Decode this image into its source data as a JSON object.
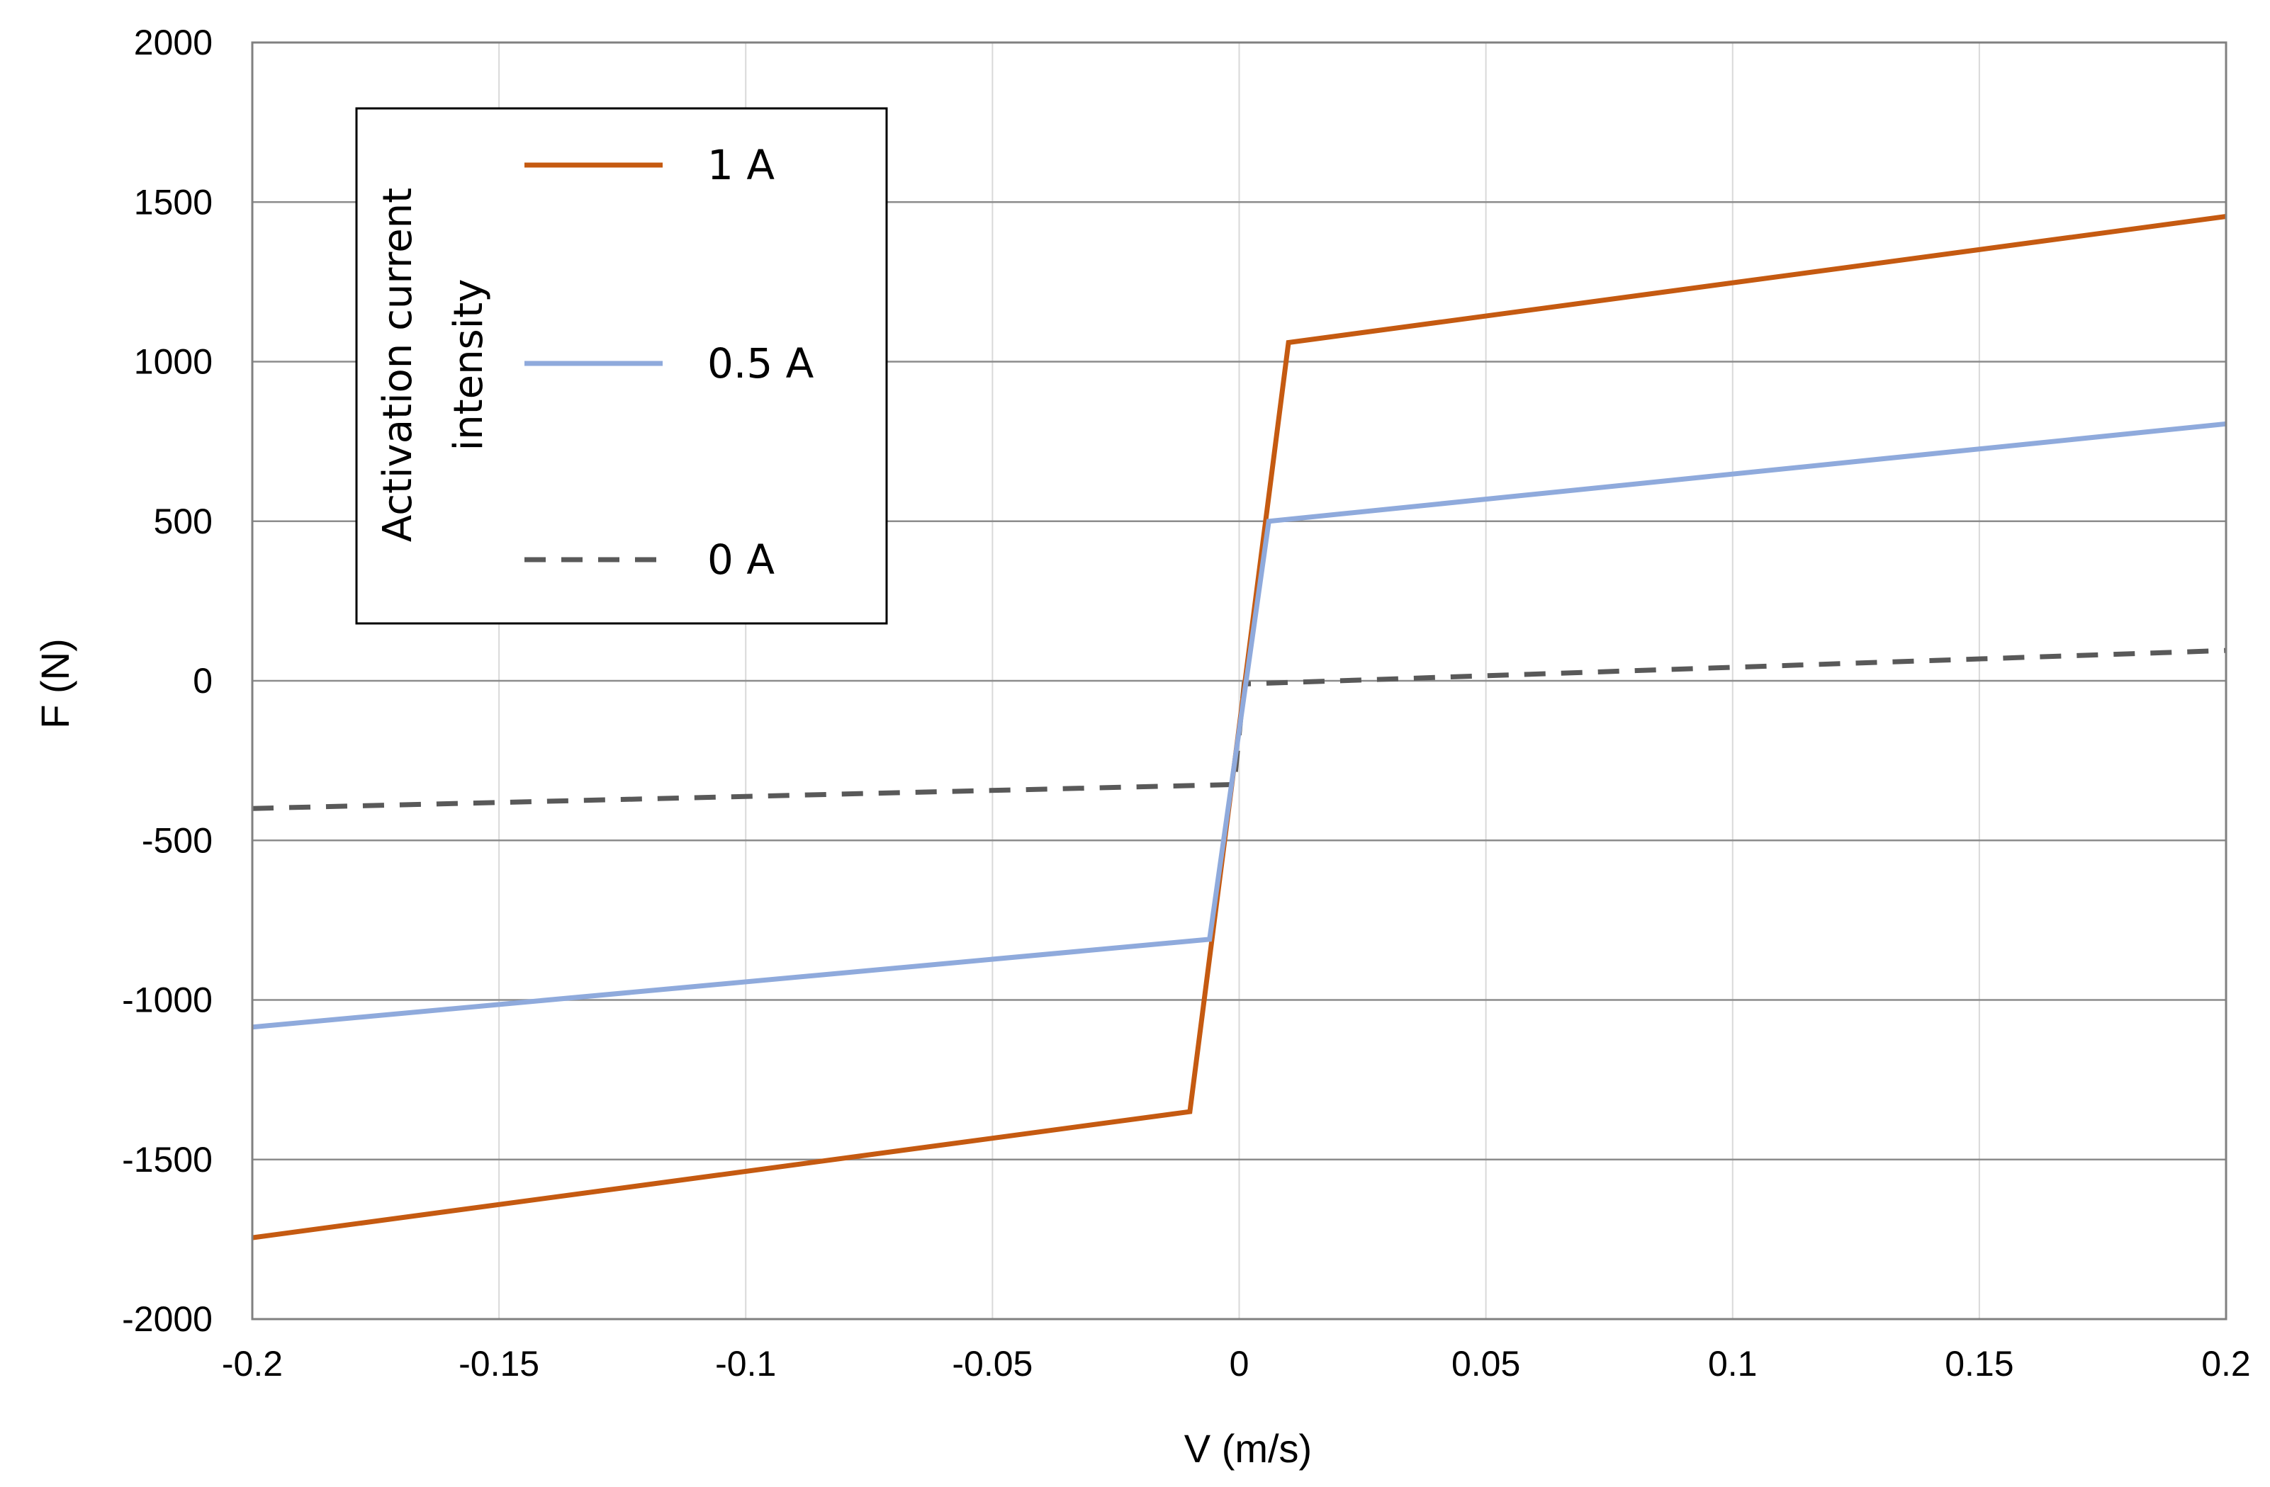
{
  "chart_data": {
    "type": "line",
    "title": "",
    "xlabel": "V (m/s)",
    "ylabel": "F (N)",
    "xlim": [
      -0.2,
      0.2
    ],
    "ylim": [
      -2000,
      2000
    ],
    "grid": true,
    "xticks": [
      -0.2,
      -0.15,
      -0.1,
      -0.05,
      0,
      0.05,
      0.1,
      0.15,
      0.2
    ],
    "xtick_labels": [
      "-0.2",
      "-0.15",
      "-0.1",
      "-0.05",
      "0",
      "0.05",
      "0.1",
      "0.15",
      "0.2"
    ],
    "yticks": [
      -2000,
      -1500,
      -1000,
      -500,
      0,
      500,
      1000,
      1500,
      2000
    ],
    "ytick_labels": [
      "-2000",
      "-1500",
      "-1000",
      "-500",
      "0",
      "500",
      "1000",
      "1500",
      "2000"
    ],
    "legend": {
      "placement": "top-left",
      "title_lines": [
        "Activation current",
        "intensity"
      ]
    },
    "series": [
      {
        "name": "1 A",
        "color": "#C55A11",
        "dash": "solid",
        "x": [
          -0.2,
          -0.01,
          0.01,
          0.2
        ],
        "y": [
          -1745,
          -1350,
          1060,
          1455
        ]
      },
      {
        "name": "0.5 A",
        "color": "#8FAADC",
        "dash": "solid",
        "x": [
          -0.2,
          -0.006,
          0.006,
          0.2
        ],
        "y": [
          -1085,
          -810,
          500,
          805
        ]
      },
      {
        "name": "0 A",
        "color": "#595959",
        "dash": "dashed",
        "x": [
          -0.2,
          -0.001,
          0.001,
          0.2
        ],
        "y": [
          -400,
          -325,
          -10,
          95
        ]
      }
    ]
  }
}
